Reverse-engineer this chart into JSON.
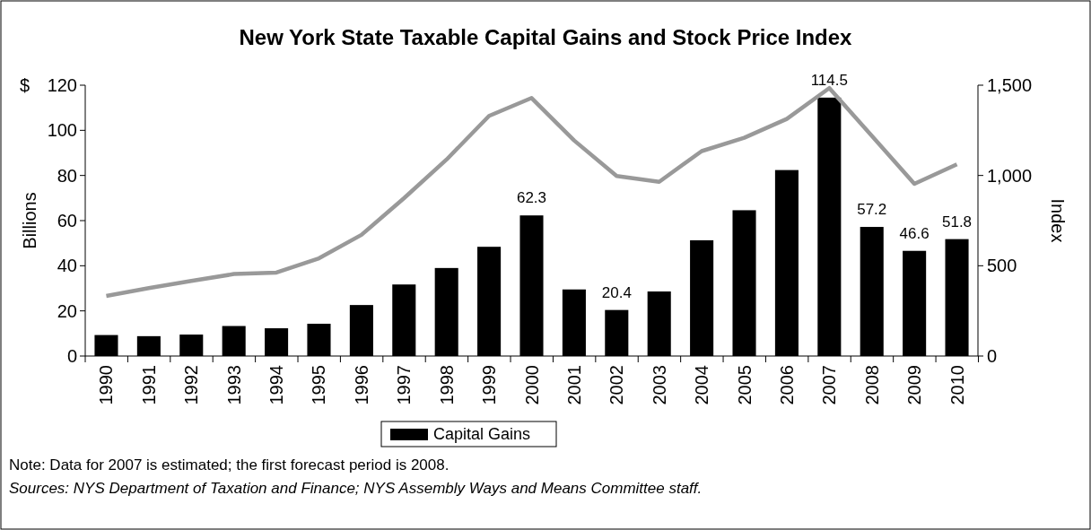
{
  "chart_data": {
    "type": "bar",
    "title": "New York State Taxable Capital Gains and Stock Price Index",
    "ylabel": "Billions",
    "y2label": "Index",
    "categories": [
      "1990",
      "1991",
      "1992",
      "1993",
      "1994",
      "1995",
      "1996",
      "1997",
      "1998",
      "1999",
      "2000",
      "2001",
      "2002",
      "2003",
      "2004",
      "2005",
      "2006",
      "2007",
      "2008",
      "2009",
      "2010"
    ],
    "series": [
      {
        "name": "Capital Gains",
        "color": "#000000",
        "values": [
          9.3,
          8.8,
          9.5,
          13.3,
          12.3,
          14.3,
          22.6,
          31.7,
          39,
          48.4,
          62.3,
          29.5,
          20.4,
          28.6,
          51.3,
          64.6,
          82.4,
          114.5,
          57.2,
          46.6,
          51.8
        ],
        "value_labels": [
          null,
          null,
          null,
          null,
          null,
          null,
          null,
          null,
          null,
          null,
          "62.3",
          null,
          "20.4",
          null,
          null,
          null,
          null,
          "114.5",
          "57.2",
          "46.6",
          "51.8"
        ]
      },
      {
        "type": "line",
        "axis": "y2",
        "color": "#999999",
        "values": [
          333,
          376,
          416,
          454,
          462,
          541,
          671,
          874,
          1088,
          1330,
          1429,
          1194,
          997,
          965,
          1135,
          1209,
          1313,
          1484,
          1219,
          954,
          1062
        ]
      }
    ],
    "ylim": [
      0,
      120
    ],
    "yticks": [
      0,
      20,
      40,
      60,
      80,
      100,
      120
    ],
    "y2lim": [
      0,
      1500
    ],
    "y2ticks": [
      0,
      {
        "value": 500,
        "label": "500"
      },
      {
        "value": 1000,
        "label": "1,000"
      },
      {
        "value": 1500,
        "label": "1,500"
      }
    ],
    "legend": "bottom",
    "grid": false,
    "marker": "none",
    "line_style": "solid",
    "annotations": [
      "$",
      "Note: Data for 2007 is estimated; the first forecast period is 2008.",
      "Sources: NYS Department of Taxation and Finance; NYS Assembly Ways and Means Committee staff."
    ]
  }
}
